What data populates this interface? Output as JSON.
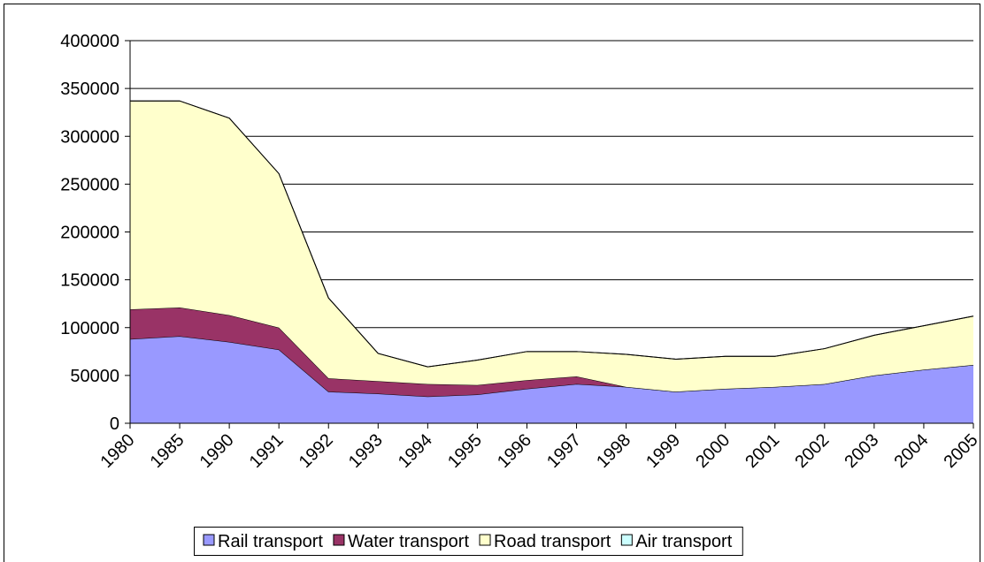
{
  "chart_data": {
    "type": "stacked_area",
    "categories": [
      "1980",
      "1985",
      "1990",
      "1991",
      "1992",
      "1993",
      "1994",
      "1995",
      "1996",
      "1997",
      "1998",
      "1999",
      "2000",
      "2001",
      "2002",
      "2003",
      "2004",
      "2005"
    ],
    "series": [
      {
        "name": "Rail transport",
        "color": "#9999ff",
        "values": [
          88000,
          91000,
          85000,
          77000,
          33000,
          31000,
          28000,
          30000,
          36000,
          41000,
          38000,
          33000,
          36000,
          38000,
          41000,
          50000,
          56000,
          61000
        ]
      },
      {
        "name": "Water transport",
        "color": "#993366",
        "values": [
          31000,
          30000,
          28000,
          23000,
          14000,
          13000,
          13000,
          10000,
          9000,
          8000,
          0,
          0,
          0,
          0,
          0,
          0,
          0,
          0
        ]
      },
      {
        "name": "Road transport",
        "color": "#ffffcc",
        "values": [
          218000,
          216000,
          206000,
          161000,
          84000,
          29000,
          18000,
          26000,
          30000,
          26000,
          34000,
          34000,
          34000,
          32000,
          37000,
          42000,
          46000,
          51000
        ]
      },
      {
        "name": "Air transport",
        "color": "#ccffff",
        "values": [
          0,
          0,
          0,
          0,
          0,
          0,
          0,
          0,
          0,
          0,
          0,
          0,
          0,
          0,
          0,
          0,
          0,
          0
        ]
      }
    ],
    "ylim": [
      0,
      400000
    ],
    "yticks": [
      0,
      50000,
      100000,
      150000,
      200000,
      250000,
      300000,
      350000,
      400000
    ],
    "grid": true,
    "legend": "bottom"
  }
}
